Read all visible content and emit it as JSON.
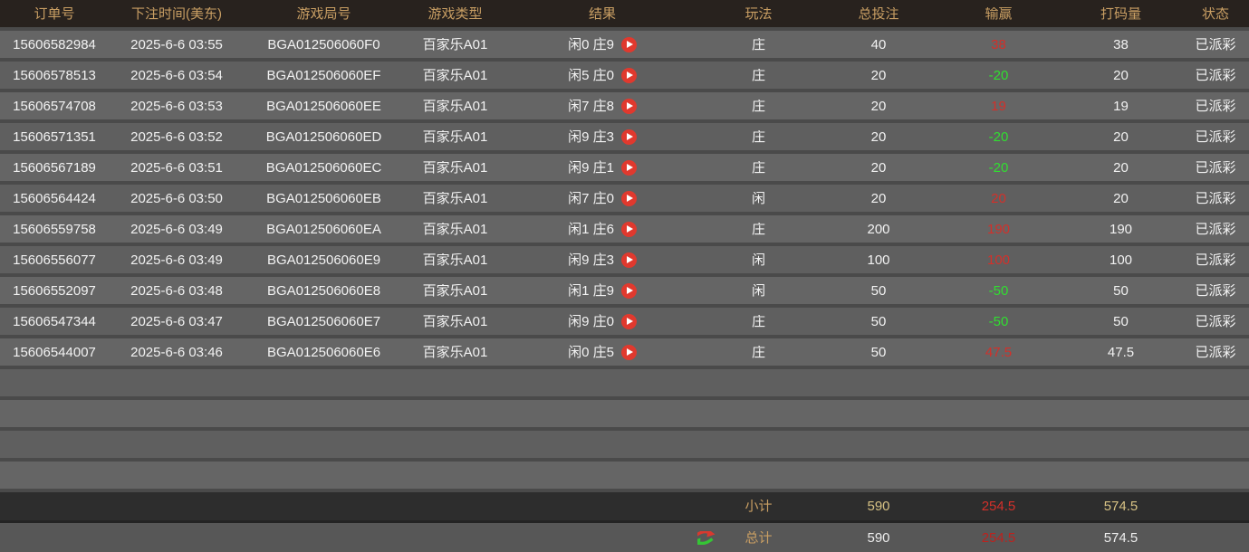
{
  "table": {
    "columns": [
      {
        "key": "order_id",
        "label": "订单号"
      },
      {
        "key": "bet_time",
        "label": "下注时间(美东)"
      },
      {
        "key": "round_id",
        "label": "游戏局号"
      },
      {
        "key": "game_type",
        "label": "游戏类型"
      },
      {
        "key": "result",
        "label": "结果"
      },
      {
        "key": "play",
        "label": "玩法"
      },
      {
        "key": "total_bet",
        "label": "总投注"
      },
      {
        "key": "win_loss",
        "label": "输赢"
      },
      {
        "key": "turnover",
        "label": "打码量"
      },
      {
        "key": "status",
        "label": "状态"
      }
    ],
    "rows": [
      {
        "order_id": "15606582984",
        "bet_time": "2025-6-6 03:55",
        "round_id": "BGA012506060F0",
        "game_type": "百家乐A01",
        "result": "闲0 庄9",
        "play": "庄",
        "total_bet": "40",
        "win_loss": "38",
        "turnover": "38",
        "status": "已派彩"
      },
      {
        "order_id": "15606578513",
        "bet_time": "2025-6-6 03:54",
        "round_id": "BGA012506060EF",
        "game_type": "百家乐A01",
        "result": "闲5 庄0",
        "play": "庄",
        "total_bet": "20",
        "win_loss": "-20",
        "turnover": "20",
        "status": "已派彩"
      },
      {
        "order_id": "15606574708",
        "bet_time": "2025-6-6 03:53",
        "round_id": "BGA012506060EE",
        "game_type": "百家乐A01",
        "result": "闲7 庄8",
        "play": "庄",
        "total_bet": "20",
        "win_loss": "19",
        "turnover": "19",
        "status": "已派彩"
      },
      {
        "order_id": "15606571351",
        "bet_time": "2025-6-6 03:52",
        "round_id": "BGA012506060ED",
        "game_type": "百家乐A01",
        "result": "闲9 庄3",
        "play": "庄",
        "total_bet": "20",
        "win_loss": "-20",
        "turnover": "20",
        "status": "已派彩"
      },
      {
        "order_id": "15606567189",
        "bet_time": "2025-6-6 03:51",
        "round_id": "BGA012506060EC",
        "game_type": "百家乐A01",
        "result": "闲9 庄1",
        "play": "庄",
        "total_bet": "20",
        "win_loss": "-20",
        "turnover": "20",
        "status": "已派彩"
      },
      {
        "order_id": "15606564424",
        "bet_time": "2025-6-6 03:50",
        "round_id": "BGA012506060EB",
        "game_type": "百家乐A01",
        "result": "闲7 庄0",
        "play": "闲",
        "total_bet": "20",
        "win_loss": "20",
        "turnover": "20",
        "status": "已派彩"
      },
      {
        "order_id": "15606559758",
        "bet_time": "2025-6-6 03:49",
        "round_id": "BGA012506060EA",
        "game_type": "百家乐A01",
        "result": "闲1 庄6",
        "play": "庄",
        "total_bet": "200",
        "win_loss": "190",
        "turnover": "190",
        "status": "已派彩"
      },
      {
        "order_id": "15606556077",
        "bet_time": "2025-6-6 03:49",
        "round_id": "BGA012506060E9",
        "game_type": "百家乐A01",
        "result": "闲9 庄3",
        "play": "闲",
        "total_bet": "100",
        "win_loss": "100",
        "turnover": "100",
        "status": "已派彩"
      },
      {
        "order_id": "15606552097",
        "bet_time": "2025-6-6 03:48",
        "round_id": "BGA012506060E8",
        "game_type": "百家乐A01",
        "result": "闲1 庄9",
        "play": "闲",
        "total_bet": "50",
        "win_loss": "-50",
        "turnover": "50",
        "status": "已派彩"
      },
      {
        "order_id": "15606547344",
        "bet_time": "2025-6-6 03:47",
        "round_id": "BGA012506060E7",
        "game_type": "百家乐A01",
        "result": "闲9 庄0",
        "play": "庄",
        "total_bet": "50",
        "win_loss": "-50",
        "turnover": "50",
        "status": "已派彩"
      },
      {
        "order_id": "15606544007",
        "bet_time": "2025-6-6 03:46",
        "round_id": "BGA012506060E6",
        "game_type": "百家乐A01",
        "result": "闲0 庄5",
        "play": "庄",
        "total_bet": "50",
        "win_loss": "47.5",
        "turnover": "47.5",
        "status": "已派彩"
      }
    ],
    "empty_row_count": 4,
    "subtotal": {
      "label": "小计",
      "total_bet": "590",
      "win_loss": "254.5",
      "turnover": "574.5"
    },
    "total": {
      "label": "总计",
      "total_bet": "590",
      "win_loss": "254.5",
      "turnover": "574.5"
    }
  },
  "icons": {
    "play_icon": "video-replay-play-button",
    "swap_icon": "red-green-swap-arrows"
  },
  "colors": {
    "header_bg": "#28221e",
    "header_text": "#c89e63",
    "gap_bg": "#4a4a4a",
    "row_bg_odd": "#656565",
    "row_bg_even": "#5f5f5f",
    "row_text": "#f2f2f2",
    "win_red": "#d3302a",
    "loss_green": "#30df30",
    "subtotal_bg": "#2d2d2d",
    "subtotal_gold": "#d7c284",
    "total_bg": "#575757",
    "play_icon_red": "#e0392e"
  }
}
